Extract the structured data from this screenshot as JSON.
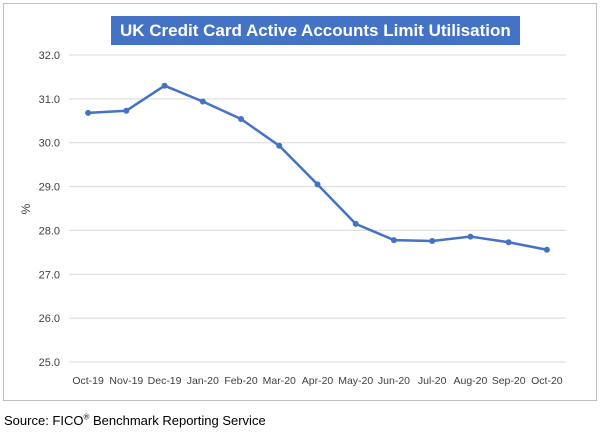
{
  "chart_data": {
    "type": "line",
    "title": "UK Credit Card Active Accounts Limit Utilisation",
    "xlabel": "",
    "ylabel": "%",
    "categories": [
      "Oct-19",
      "Nov-19",
      "Dec-19",
      "Jan-20",
      "Feb-20",
      "Mar-20",
      "Apr-20",
      "May-20",
      "Jun-20",
      "Jul-20",
      "Aug-20",
      "Sep-20",
      "Oct-20"
    ],
    "series": [
      {
        "values": [
          30.68,
          30.73,
          31.3,
          30.94,
          30.54,
          29.93,
          29.05,
          28.15,
          27.78,
          27.76,
          27.86,
          27.73,
          27.56
        ]
      }
    ],
    "ylim": [
      25.0,
      32.0
    ],
    "yticks": [
      "25.0",
      "26.0",
      "27.0",
      "28.0",
      "29.0",
      "30.0",
      "31.0",
      "32.0"
    ],
    "grid": true,
    "legend": "none",
    "colors": {
      "line": "#4472c4",
      "title_bg": "#4472c4",
      "grid": "#d9d9d9"
    }
  },
  "footer": {
    "source_prefix": "Source: FICO",
    "source_mark": "®",
    "source_suffix": " Benchmark Reporting Service"
  }
}
